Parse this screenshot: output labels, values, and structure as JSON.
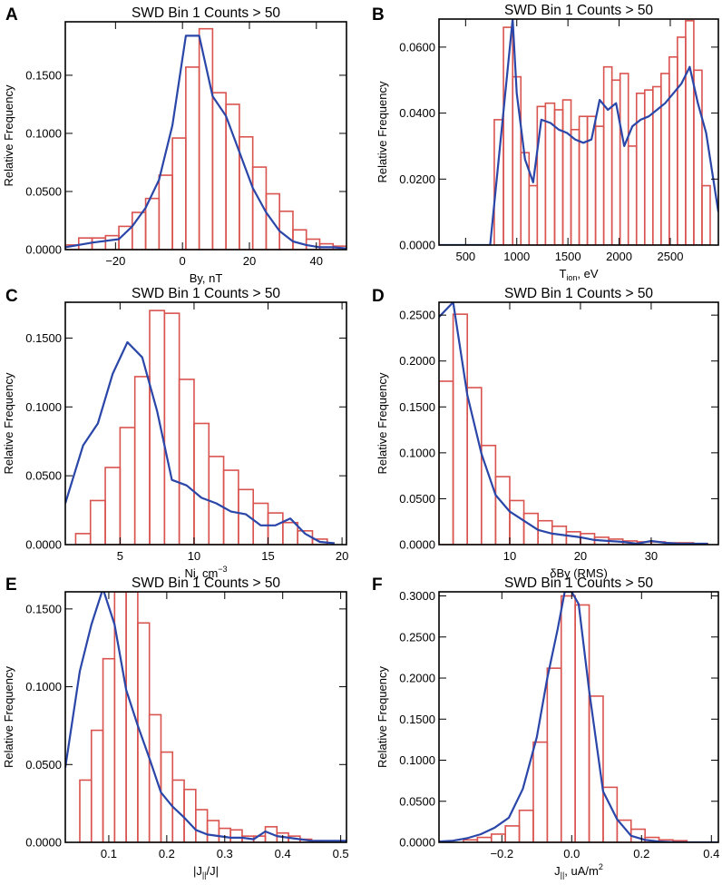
{
  "chart_data": [
    {
      "panel": "A",
      "type": "bar",
      "title": "SWD Bin 1 Counts > 50",
      "xlabel": "By, nT",
      "ylabel": "Relative Frequency",
      "xlim": [
        -35,
        49
      ],
      "ylim": [
        0,
        0.196
      ],
      "xticks": [
        -20,
        0,
        20,
        40
      ],
      "xticklabels": [
        "−20",
        "0",
        "20",
        "40"
      ],
      "yticks": [
        0,
        0.05,
        0.1,
        0.15
      ],
      "yticklabels": [
        "0.0000",
        "0.0500",
        "0.1000",
        "0.1500"
      ],
      "bin_edges": [
        -35,
        -31,
        -27,
        -23,
        -19,
        -15,
        -11,
        -7,
        -3,
        1,
        5,
        9,
        13,
        17,
        21,
        25,
        29,
        33,
        37,
        41,
        45,
        49
      ],
      "values": [
        0.004,
        0.01,
        0.01,
        0.012,
        0.02,
        0.032,
        0.044,
        0.064,
        0.096,
        0.157,
        0.19,
        0.135,
        0.125,
        0.097,
        0.071,
        0.048,
        0.033,
        0.017,
        0.009,
        0.005,
        0.003
      ],
      "series": [
        {
          "name": "model curve",
          "x": [
            -35,
            -27,
            -19,
            -15,
            -11,
            -7,
            -3,
            1,
            5,
            9,
            13,
            17,
            21,
            25,
            29,
            33,
            37,
            41,
            45,
            49
          ],
          "y": [
            0.002,
            0.006,
            0.009,
            0.02,
            0.036,
            0.06,
            0.107,
            0.184,
            0.184,
            0.132,
            0.115,
            0.084,
            0.053,
            0.032,
            0.016,
            0.007,
            0.004,
            0.002,
            0.002,
            0.001
          ]
        }
      ]
    },
    {
      "panel": "B",
      "type": "bar",
      "title": "SWD Bin 1 Counts > 50",
      "xlabel_main": "T",
      "xlabel_sub": "ion",
      "xlabel_rest": ", eV",
      "ylabel": "Relative Frequency",
      "xlim": [
        240,
        2970
      ],
      "ylim": [
        0,
        0.0685
      ],
      "xticks": [
        500,
        1000,
        1500,
        2000,
        2500
      ],
      "xticklabels": [
        "500",
        "1000",
        "1500",
        "2000",
        "2500"
      ],
      "yticks": [
        0,
        0.02,
        0.04,
        0.06
      ],
      "yticklabels": [
        "0.0000",
        "0.0200",
        "0.0400",
        "0.0600"
      ],
      "bin_edges": [
        780,
        870,
        960,
        1040,
        1120,
        1200,
        1280,
        1370,
        1450,
        1530,
        1610,
        1690,
        1770,
        1850,
        1930,
        2010,
        2090,
        2170,
        2250,
        2330,
        2410,
        2490,
        2570,
        2650,
        2730,
        2810,
        2890
      ],
      "values": [
        0.038,
        0.066,
        0.051,
        0.028,
        0.018,
        0.042,
        0.043,
        0.041,
        0.044,
        0.035,
        0.039,
        0.039,
        0.036,
        0.054,
        0.05,
        0.052,
        0.03,
        0.046,
        0.047,
        0.048,
        0.052,
        0.057,
        0.063,
        0.068,
        0.053,
        0.018
      ],
      "series": [
        {
          "name": "model curve",
          "x": [
            240,
            740,
            960,
            1000,
            1080,
            1160,
            1240,
            1330,
            1410,
            1490,
            1570,
            1650,
            1730,
            1810,
            1890,
            1970,
            2050,
            2130,
            2210,
            2290,
            2370,
            2450,
            2530,
            2610,
            2690,
            2770,
            2850,
            2970
          ],
          "y": [
            0.0,
            0.0,
            0.0685,
            0.046,
            0.026,
            0.019,
            0.038,
            0.037,
            0.035,
            0.034,
            0.032,
            0.031,
            0.032,
            0.044,
            0.041,
            0.043,
            0.03,
            0.036,
            0.038,
            0.039,
            0.041,
            0.043,
            0.046,
            0.049,
            0.054,
            0.043,
            0.034,
            0.01
          ]
        }
      ]
    },
    {
      "panel": "C",
      "type": "bar",
      "title": "SWD Bin 1 Counts > 50",
      "xlabel_main": "Ni, cm",
      "xlabel_sup": "−3",
      "ylabel": "Relative Frequency",
      "xlim": [
        1.3,
        20.3
      ],
      "ylim": [
        0,
        0.176
      ],
      "xticks": [
        5,
        10,
        15,
        20
      ],
      "xticklabels": [
        "5",
        "10",
        "15",
        "20"
      ],
      "yticks": [
        0,
        0.05,
        0.1,
        0.15
      ],
      "yticklabels": [
        "0.0000",
        "0.0500",
        "0.1000",
        "0.1500"
      ],
      "bin_edges": [
        2,
        3,
        4,
        5,
        6,
        7,
        8,
        9,
        10,
        11,
        12,
        13,
        14,
        15,
        16,
        17,
        18,
        19
      ],
      "values": [
        0.008,
        0.032,
        0.056,
        0.085,
        0.122,
        0.17,
        0.168,
        0.12,
        0.088,
        0.064,
        0.054,
        0.04,
        0.03,
        0.023,
        0.016,
        0.01,
        0.004
      ],
      "series": [
        {
          "name": "model curve",
          "x": [
            1.3,
            2.5,
            3.5,
            4.5,
            5.5,
            6.5,
            7.5,
            8.5,
            9.5,
            10.5,
            11.5,
            12.5,
            13.5,
            14.5,
            15.5,
            16.5,
            17.5,
            18.5,
            19.5
          ],
          "y": [
            0.03,
            0.072,
            0.088,
            0.124,
            0.147,
            0.136,
            0.097,
            0.047,
            0.043,
            0.034,
            0.03,
            0.024,
            0.022,
            0.014,
            0.014,
            0.019,
            0.008,
            0.002,
            0.001
          ]
        }
      ]
    },
    {
      "panel": "D",
      "type": "bar",
      "title": "SWD Bin 1 Counts > 50",
      "xlabel": "δBy (RMS)",
      "ylabel": "Relative Frequency",
      "xlim": [
        0,
        39.5
      ],
      "ylim": [
        0,
        0.264
      ],
      "xticks": [
        10,
        20,
        30
      ],
      "xticklabels": [
        "10",
        "20",
        "30"
      ],
      "yticks": [
        0,
        0.05,
        0.1,
        0.15,
        0.2,
        0.25
      ],
      "yticklabels": [
        "0.0000",
        "0.0500",
        "0.1000",
        "0.1500",
        "0.2000",
        "0.2500"
      ],
      "bin_edges": [
        0,
        2,
        4,
        6,
        8,
        10,
        12,
        14,
        16,
        18,
        20,
        22,
        24,
        26,
        28,
        30,
        32,
        34,
        36,
        38
      ],
      "values": [
        0.178,
        0.251,
        0.171,
        0.108,
        0.074,
        0.048,
        0.034,
        0.026,
        0.02,
        0.014,
        0.012,
        0.008,
        0.006,
        0.004,
        0.003,
        0.003,
        0.002,
        0.002,
        0.001
      ],
      "series": [
        {
          "name": "model curve",
          "x": [
            0,
            2,
            4,
            6,
            8,
            10,
            12,
            14,
            16,
            18,
            20,
            22,
            24,
            26,
            28,
            30,
            32,
            34,
            36,
            38
          ],
          "y": [
            0.248,
            0.264,
            0.163,
            0.099,
            0.054,
            0.036,
            0.026,
            0.016,
            0.012,
            0.01,
            0.008,
            0.005,
            0.004,
            0.003,
            0.001,
            0.004,
            0.002,
            0.001,
            0.001,
            0.001
          ]
        }
      ]
    },
    {
      "panel": "E",
      "type": "bar",
      "title": "SWD Bin 1 Counts > 50",
      "xlabel_pre": "|J",
      "xlabel_sub": "||",
      "xlabel_rest": "/J|",
      "ylabel": "Relative Frequency",
      "xlim": [
        0.025,
        0.51
      ],
      "ylim": [
        0,
        0.161
      ],
      "xticks": [
        0.1,
        0.2,
        0.3,
        0.4,
        0.5
      ],
      "xticklabels": [
        "0.1",
        "0.2",
        "0.3",
        "0.4",
        "0.5"
      ],
      "yticks": [
        0,
        0.05,
        0.1,
        0.15
      ],
      "yticklabels": [
        "0.0000",
        "0.0500",
        "0.1000",
        "0.1500"
      ],
      "bin_edges": [
        0.05,
        0.07,
        0.09,
        0.11,
        0.13,
        0.15,
        0.17,
        0.19,
        0.21,
        0.23,
        0.25,
        0.27,
        0.29,
        0.31,
        0.33,
        0.35,
        0.37,
        0.39,
        0.41,
        0.43,
        0.45,
        0.47
      ],
      "values": [
        0.04,
        0.072,
        0.118,
        0.161,
        0.161,
        0.141,
        0.082,
        0.058,
        0.04,
        0.034,
        0.021,
        0.014,
        0.009,
        0.008,
        0.004,
        0.004,
        0.01,
        0.006,
        0.004,
        0.002,
        0.001
      ],
      "series": [
        {
          "name": "model curve",
          "x": [
            0.025,
            0.05,
            0.07,
            0.09,
            0.11,
            0.13,
            0.15,
            0.17,
            0.19,
            0.21,
            0.23,
            0.25,
            0.27,
            0.29,
            0.31,
            0.33,
            0.35,
            0.37,
            0.39,
            0.41,
            0.43,
            0.45,
            0.47,
            0.51
          ],
          "y": [
            0.048,
            0.11,
            0.14,
            0.163,
            0.14,
            0.098,
            0.075,
            0.054,
            0.032,
            0.023,
            0.016,
            0.008,
            0.005,
            0.004,
            0.003,
            0.003,
            0.002,
            0.007,
            0.004,
            0.003,
            0.002,
            0.001,
            0.001,
            0.001
          ]
        }
      ]
    },
    {
      "panel": "F",
      "type": "bar",
      "title": "SWD Bin 1 Counts > 50",
      "xlabel_main": "J",
      "xlabel_sub": "||",
      "xlabel_rest": ", uA/m",
      "xlabel_sup": "2",
      "ylabel": "Relative Frequency",
      "xlim": [
        -0.38,
        0.42
      ],
      "ylim": [
        0,
        0.305
      ],
      "xticks": [
        -0.2,
        0.0,
        0.2,
        0.4
      ],
      "xticklabels": [
        "−0.2",
        "0.0",
        "0.2",
        "0.4"
      ],
      "yticks": [
        0,
        0.05,
        0.1,
        0.15,
        0.2,
        0.25,
        0.3
      ],
      "yticklabels": [
        "0.0000",
        "0.0500",
        "0.1000",
        "0.1500",
        "0.2000",
        "0.2500",
        "0.3000"
      ],
      "bin_edges": [
        -0.31,
        -0.27,
        -0.23,
        -0.19,
        -0.15,
        -0.11,
        -0.07,
        -0.03,
        0.01,
        0.05,
        0.09,
        0.13,
        0.17,
        0.21,
        0.25,
        0.29,
        0.33
      ],
      "values": [
        0.003,
        0.006,
        0.01,
        0.02,
        0.039,
        0.122,
        0.212,
        0.3,
        0.289,
        0.178,
        0.067,
        0.027,
        0.016,
        0.006,
        0.003,
        0.002
      ],
      "series": [
        {
          "name": "model curve",
          "x": [
            -0.38,
            -0.34,
            -0.3,
            -0.26,
            -0.22,
            -0.18,
            -0.14,
            -0.1,
            -0.07,
            -0.04,
            -0.02,
            0.0,
            0.02,
            0.05,
            0.09,
            0.13,
            0.17,
            0.21,
            0.25,
            0.3,
            0.42
          ],
          "y": [
            0.001,
            0.002,
            0.005,
            0.01,
            0.018,
            0.03,
            0.065,
            0.128,
            0.2,
            0.26,
            0.305,
            0.305,
            0.29,
            0.185,
            0.062,
            0.028,
            0.008,
            0.003,
            0.001,
            0.0,
            0.0
          ]
        }
      ]
    }
  ]
}
